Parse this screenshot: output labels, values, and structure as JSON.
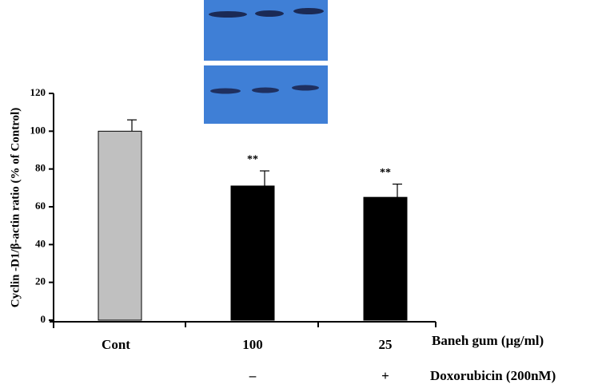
{
  "chart_data": {
    "type": "bar",
    "y_label": "Cyclin -D1/β-actin ratio (% of Control)",
    "x_label": "Baneh gum (µg/ml)",
    "categories": [
      "Cont",
      "100",
      "25"
    ],
    "values": [
      100,
      71,
      65
    ],
    "errors": [
      6,
      8,
      7
    ],
    "colors": [
      "#c0c0c0",
      "#000000",
      "#000000"
    ],
    "annotations": [
      {
        "category": "100",
        "text": "**"
      },
      {
        "category": "25",
        "text": "**"
      }
    ],
    "extra_rows": [
      {
        "label": "Doxorubicin (200nM)",
        "values": [
          null,
          "–",
          "+"
        ]
      }
    ],
    "ylim": [
      0,
      120
    ],
    "yticks": [
      0,
      20,
      40,
      60,
      80,
      100,
      120
    ]
  }
}
